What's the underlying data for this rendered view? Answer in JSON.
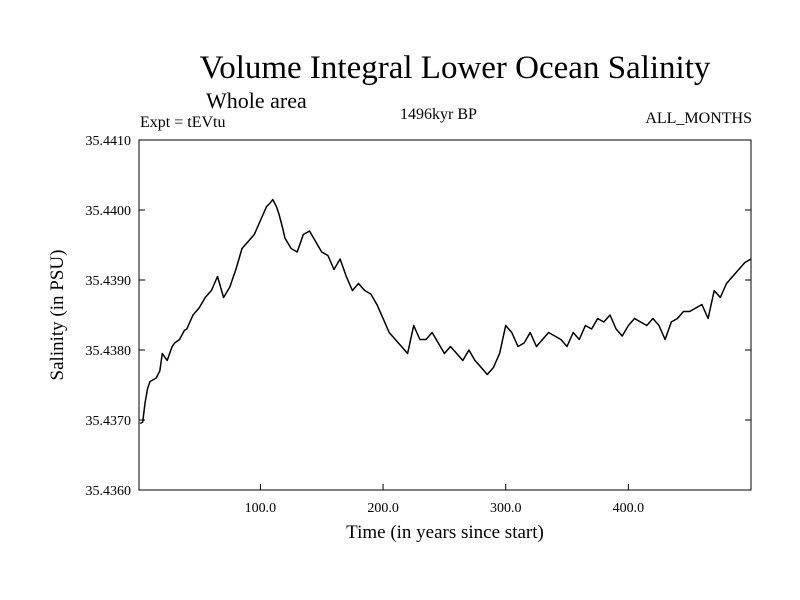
{
  "chart_data": {
    "type": "line",
    "title": "Volume Integral Lower Ocean Salinity",
    "subtitle": "Whole area",
    "experiment": "Expt = tEVtu",
    "period": "1496kyr BP",
    "months": "ALL_MONTHS",
    "xlabel": "Time (in years since start)",
    "ylabel": "Salinity (in PSU)",
    "xlim": [
      1,
      500
    ],
    "ylim": [
      35.436,
      35.441
    ],
    "x_ticks": [
      100,
      200,
      300,
      400
    ],
    "x_tick_labels": [
      "100.0",
      "200.0",
      "300.0",
      "400.0"
    ],
    "y_ticks": [
      35.436,
      35.437,
      35.438,
      35.439,
      35.44,
      35.441
    ],
    "y_tick_labels": [
      "35.4360",
      "35.4370",
      "35.4380",
      "35.4390",
      "35.4400",
      "35.4410"
    ],
    "series": [
      {
        "name": "Volume Integral Lower Ocean Salinity",
        "color": "#000000",
        "x": [
          2,
          4,
          6,
          8,
          10,
          12,
          15,
          18,
          20,
          24,
          28,
          30,
          34,
          38,
          40,
          45,
          50,
          55,
          60,
          65,
          70,
          75,
          78,
          80,
          85,
          90,
          95,
          100,
          105,
          108,
          110,
          113,
          115,
          118,
          120,
          125,
          130,
          135,
          140,
          145,
          150,
          155,
          160,
          165,
          170,
          175,
          180,
          185,
          190,
          195,
          200,
          205,
          210,
          215,
          220,
          225,
          230,
          235,
          240,
          245,
          250,
          255,
          260,
          265,
          270,
          275,
          280,
          285,
          290,
          295,
          300,
          305,
          310,
          315,
          320,
          325,
          330,
          335,
          340,
          345,
          350,
          355,
          360,
          365,
          370,
          375,
          380,
          385,
          390,
          395,
          400,
          405,
          410,
          415,
          420,
          425,
          430,
          435,
          440,
          445,
          450,
          455,
          460,
          465,
          470,
          475,
          480,
          485,
          490,
          495,
          500
        ],
        "y": [
          35.43695,
          35.43697,
          35.43725,
          35.43745,
          35.43755,
          35.43757,
          35.4376,
          35.4377,
          35.43795,
          35.43785,
          35.43805,
          35.4381,
          35.43815,
          35.43828,
          35.4383,
          35.4385,
          35.4386,
          35.43875,
          35.43885,
          35.43905,
          35.43875,
          35.4389,
          35.43905,
          35.43915,
          35.43945,
          35.43955,
          35.43965,
          35.43985,
          35.44005,
          35.4401,
          35.44015,
          35.44005,
          35.43995,
          35.43975,
          35.4396,
          35.43945,
          35.4394,
          35.43965,
          35.4397,
          35.43955,
          35.4394,
          35.43935,
          35.43915,
          35.4393,
          35.43905,
          35.43885,
          35.43895,
          35.43885,
          35.4388,
          35.43865,
          35.43845,
          35.43825,
          35.43815,
          35.43805,
          35.43795,
          35.43835,
          35.43815,
          35.43815,
          35.43825,
          35.4381,
          35.43795,
          35.43805,
          35.43795,
          35.43785,
          35.438,
          35.43785,
          35.43775,
          35.43765,
          35.43775,
          35.43795,
          35.43835,
          35.43825,
          35.43805,
          35.4381,
          35.43825,
          35.43805,
          35.43815,
          35.43825,
          35.4382,
          35.43815,
          35.43805,
          35.43825,
          35.43815,
          35.43835,
          35.4383,
          35.43845,
          35.4384,
          35.4385,
          35.4383,
          35.4382,
          35.43835,
          35.43845,
          35.4384,
          35.43835,
          35.43845,
          35.43835,
          35.43815,
          35.4384,
          35.43845,
          35.43855,
          35.43855,
          35.4386,
          35.43865,
          35.43845,
          35.43885,
          35.43875,
          35.43895,
          35.43905,
          35.43915,
          35.43925,
          35.4393
        ]
      }
    ]
  }
}
